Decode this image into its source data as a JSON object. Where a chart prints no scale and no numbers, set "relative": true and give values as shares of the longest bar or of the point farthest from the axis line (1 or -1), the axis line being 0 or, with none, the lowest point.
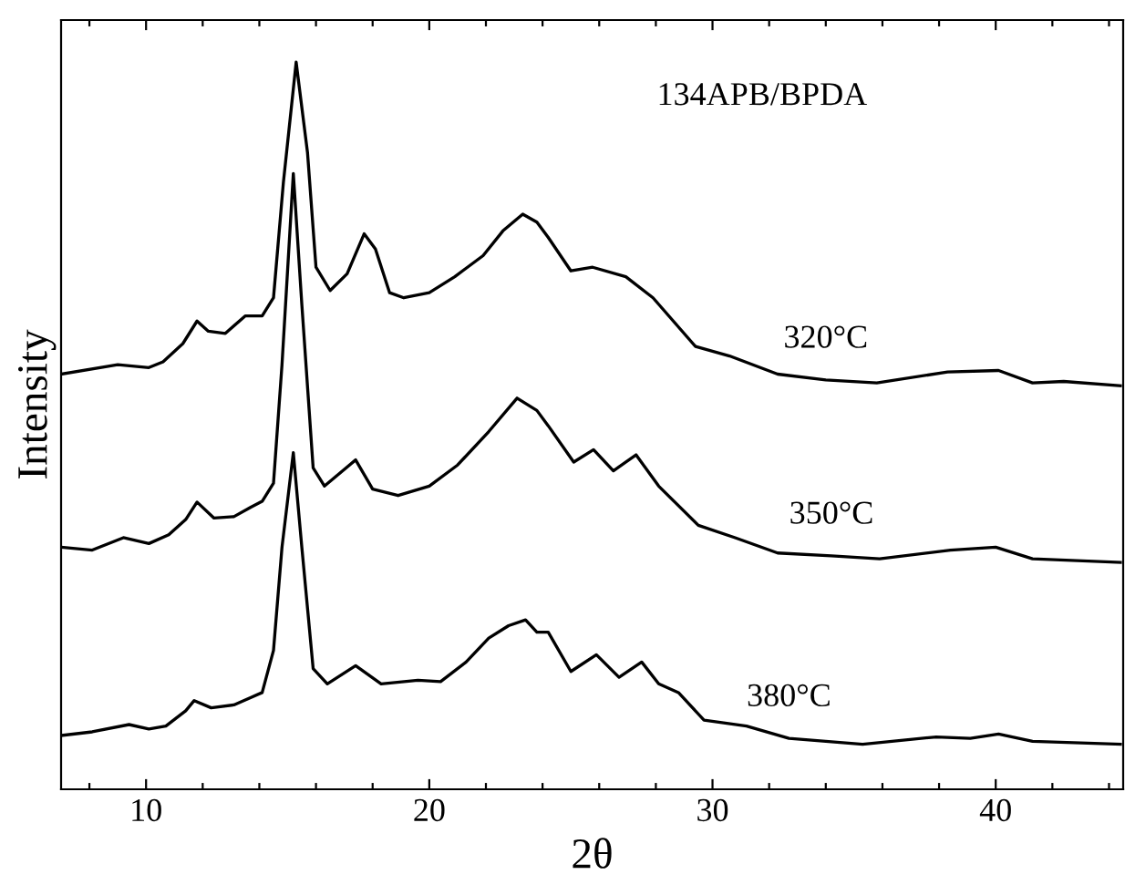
{
  "chart_data": {
    "type": "line",
    "title": "134APB/BPDA",
    "xlabel": "2θ",
    "ylabel": "Intensity",
    "relative": true,
    "xlim": [
      7,
      44.5
    ],
    "xticks": [
      {
        "value": 8,
        "label": null
      },
      10,
      {
        "value": 12,
        "label": null
      },
      {
        "value": 14,
        "label": null
      },
      {
        "value": 16,
        "label": null
      },
      {
        "value": 18,
        "label": null
      },
      20,
      {
        "value": 22,
        "label": null
      },
      {
        "value": 24,
        "label": null
      },
      {
        "value": 26,
        "label": null
      },
      {
        "value": 28,
        "label": null
      },
      30,
      {
        "value": 32,
        "label": null
      },
      {
        "value": 34,
        "label": null
      },
      {
        "value": 36,
        "label": null
      },
      {
        "value": 38,
        "label": null
      },
      40,
      {
        "value": 42,
        "label": null
      },
      {
        "value": 44,
        "label": null
      }
    ],
    "grid": false,
    "legend": false,
    "marker": "none",
    "line_style": "solid",
    "series": [
      {
        "name": "320°C",
        "color": "#000000",
        "x": [
          7,
          9.0,
          10.1,
          10.6,
          11.3,
          11.8,
          12.2,
          12.8,
          13.5,
          14.1,
          14.5,
          14.85,
          15.3,
          15.7,
          16.0,
          16.5,
          17.1,
          17.7,
          18.1,
          18.6,
          19.1,
          20.0,
          20.9,
          21.9,
          22.6,
          23.3,
          23.8,
          24.2,
          25.0,
          25.77,
          26.94,
          27.9,
          29.4,
          30.6,
          32.3,
          34.0,
          35.8,
          38.3,
          40.1,
          41.3,
          42.4,
          44.4
        ],
        "values": [
          0.571,
          0.584,
          0.58,
          0.588,
          0.613,
          0.644,
          0.63,
          0.627,
          0.651,
          0.651,
          0.676,
          0.835,
          1,
          0.876,
          0.718,
          0.686,
          0.709,
          0.764,
          0.743,
          0.683,
          0.676,
          0.683,
          0.705,
          0.734,
          0.768,
          0.791,
          0.78,
          0.759,
          0.713,
          0.718,
          0.705,
          0.676,
          0.609,
          0.596,
          0.571,
          0.563,
          0.559,
          0.574,
          0.576,
          0.559,
          0.561,
          0.555
        ]
      },
      {
        "name": "350°C",
        "color": "#000000",
        "x": [
          7,
          8.1,
          9.2,
          10.1,
          10.8,
          11.4,
          11.8,
          12.4,
          13.1,
          13.7,
          14.1,
          14.5,
          14.8,
          15.2,
          15.5,
          15.9,
          16.3,
          17.4,
          18.0,
          18.9,
          20.0,
          21.0,
          22.1,
          23.1,
          23.8,
          24.2,
          25.1,
          25.8,
          26.5,
          27.3,
          28.1,
          29.5,
          30.8,
          32.3,
          34.2,
          35.9,
          38.4,
          40.0,
          41.3,
          44.4
        ],
        "values": [
          0.333,
          0.329,
          0.346,
          0.338,
          0.35,
          0.371,
          0.395,
          0.373,
          0.375,
          0.388,
          0.396,
          0.421,
          0.584,
          0.847,
          0.667,
          0.442,
          0.417,
          0.453,
          0.413,
          0.404,
          0.417,
          0.446,
          0.492,
          0.538,
          0.521,
          0.5,
          0.45,
          0.467,
          0.438,
          0.46,
          0.417,
          0.363,
          0.346,
          0.325,
          0.321,
          0.317,
          0.329,
          0.333,
          0.317,
          0.312
        ]
      },
      {
        "name": "380°C",
        "color": "#000000",
        "x": [
          7,
          8.1,
          9.4,
          10.1,
          10.7,
          11.4,
          11.7,
          12.3,
          13.1,
          14.1,
          14.5,
          14.8,
          15.2,
          15.5,
          15.9,
          16.4,
          17.4,
          18.3,
          19.6,
          20.4,
          21.3,
          22.1,
          22.8,
          23.4,
          23.8,
          24.2,
          25.0,
          25.9,
          26.7,
          27.5,
          28.1,
          28.8,
          29.7,
          31.2,
          32.7,
          35.3,
          37.9,
          39.1,
          40.1,
          41.3,
          44.4
        ],
        "values": [
          0.074,
          0.079,
          0.089,
          0.083,
          0.087,
          0.108,
          0.122,
          0.112,
          0.116,
          0.133,
          0.191,
          0.333,
          0.463,
          0.333,
          0.166,
          0.145,
          0.17,
          0.145,
          0.15,
          0.148,
          0.175,
          0.208,
          0.225,
          0.233,
          0.216,
          0.216,
          0.162,
          0.185,
          0.154,
          0.175,
          0.145,
          0.133,
          0.095,
          0.087,
          0.07,
          0.062,
          0.072,
          0.07,
          0.076,
          0.066,
          0.062
        ]
      }
    ]
  }
}
